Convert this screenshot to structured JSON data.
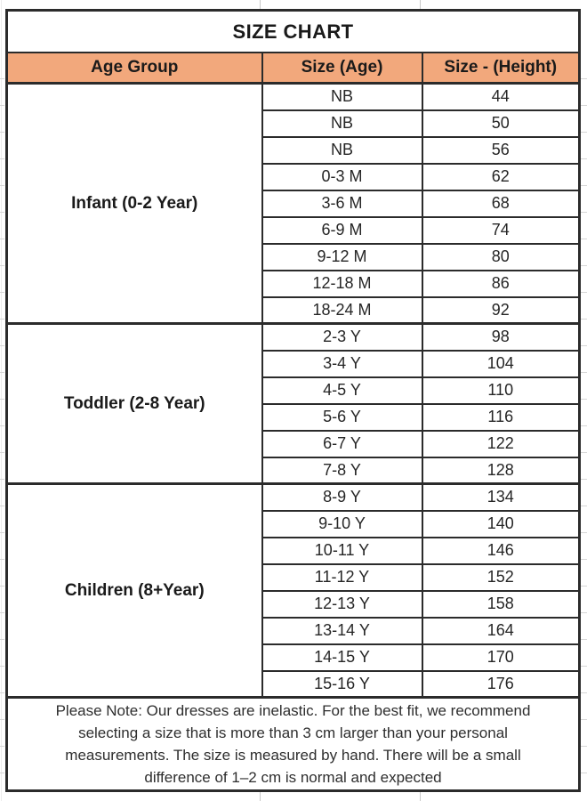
{
  "title": "SIZE CHART",
  "columns": [
    {
      "label": "Age Group"
    },
    {
      "label": "Size (Age)"
    },
    {
      "label": "Size - (Height)"
    }
  ],
  "groups": [
    {
      "label": "Infant (0-2 Year)",
      "rows": [
        [
          "NB",
          "44"
        ],
        [
          "NB",
          "50"
        ],
        [
          "NB",
          "56"
        ],
        [
          "0-3 M",
          "62"
        ],
        [
          "3-6 M",
          "68"
        ],
        [
          "6-9 M",
          "74"
        ],
        [
          "9-12 M",
          "80"
        ],
        [
          "12-18 M",
          "86"
        ],
        [
          "18-24 M",
          "92"
        ]
      ]
    },
    {
      "label": "Toddler (2-8 Year)",
      "rows": [
        [
          "2-3 Y",
          "98"
        ],
        [
          "3-4 Y",
          "104"
        ],
        [
          "4-5 Y",
          "110"
        ],
        [
          "5-6 Y",
          "116"
        ],
        [
          "6-7 Y",
          "122"
        ],
        [
          "7-8 Y",
          "128"
        ]
      ]
    },
    {
      "label": "Children (8+Year)",
      "rows": [
        [
          "8-9 Y",
          "134"
        ],
        [
          "9-10 Y",
          "140"
        ],
        [
          "10-11 Y",
          "146"
        ],
        [
          "11-12 Y",
          "152"
        ],
        [
          "12-13 Y",
          "158"
        ],
        [
          "13-14 Y",
          "164"
        ],
        [
          "14-15 Y",
          "170"
        ],
        [
          "15-16 Y",
          "176"
        ]
      ]
    }
  ],
  "note": {
    "lines": [
      "Please Note: Our dresses are inelastic. For the best fit, we recommend",
      "selecting a size that is more than 3 cm larger than your personal",
      "measurements. The size is measured by hand. There will be a small",
      "difference of 1–2 cm is normal and expected"
    ],
    "full_text": "Please Note: Our dresses are inelastic. For the best fit, we recommend selecting a size that is more than 3 cm larger than your personal measurements. The size is measured by hand. There will be a small difference of 1–2 cm is normal and expected"
  },
  "colors": {
    "header_fill": "#F2A87C",
    "border": "#2B2B2B"
  },
  "chart_data": {
    "type": "table",
    "title": "SIZE CHART",
    "columns": [
      "Age Group",
      "Size (Age)",
      "Size - (Height)"
    ],
    "rows": [
      [
        "Infant (0-2 Year)",
        "NB",
        44
      ],
      [
        "Infant (0-2 Year)",
        "NB",
        50
      ],
      [
        "Infant (0-2 Year)",
        "NB",
        56
      ],
      [
        "Infant (0-2 Year)",
        "0-3 M",
        62
      ],
      [
        "Infant (0-2 Year)",
        "3-6 M",
        68
      ],
      [
        "Infant (0-2 Year)",
        "6-9 M",
        74
      ],
      [
        "Infant (0-2 Year)",
        "9-12 M",
        80
      ],
      [
        "Infant (0-2 Year)",
        "12-18 M",
        86
      ],
      [
        "Infant (0-2 Year)",
        "18-24 M",
        92
      ],
      [
        "Toddler (2-8 Year)",
        "2-3 Y",
        98
      ],
      [
        "Toddler (2-8 Year)",
        "3-4 Y",
        104
      ],
      [
        "Toddler (2-8 Year)",
        "4-5 Y",
        110
      ],
      [
        "Toddler (2-8 Year)",
        "5-6 Y",
        116
      ],
      [
        "Toddler (2-8 Year)",
        "6-7 Y",
        122
      ],
      [
        "Toddler (2-8 Year)",
        "7-8 Y",
        128
      ],
      [
        "Children (8+Year)",
        "8-9 Y",
        134
      ],
      [
        "Children (8+Year)",
        "9-10 Y",
        140
      ],
      [
        "Children (8+Year)",
        "10-11 Y",
        146
      ],
      [
        "Children (8+Year)",
        "11-12 Y",
        152
      ],
      [
        "Children (8+Year)",
        "12-13 Y",
        158
      ],
      [
        "Children (8+Year)",
        "13-14 Y",
        164
      ],
      [
        "Children (8+Year)",
        "14-15 Y",
        170
      ],
      [
        "Children (8+Year)",
        "15-16 Y",
        176
      ]
    ],
    "note": "Please Note: Our dresses are inelastic. For the best fit, we recommend selecting a size that is more than 3 cm larger than your personal measurements. The size is measured by hand. There will be a small difference of 1–2 cm is normal and expected"
  }
}
